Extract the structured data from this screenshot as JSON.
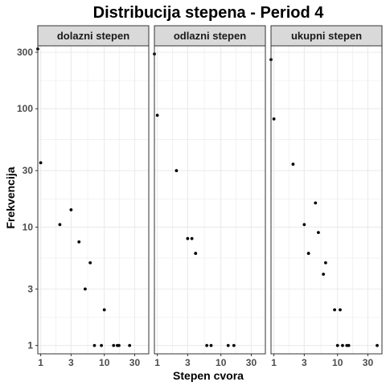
{
  "chart_data": {
    "type": "scatter",
    "title": "Distribucija stepena - Period 4",
    "xlabel": "Stepen cvora",
    "ylabel": "Frekvencija",
    "x_scale": "log",
    "y_scale": "log",
    "xlim": [
      0.9,
      50
    ],
    "ylim": [
      0.85,
      340
    ],
    "x_ticks": [
      1,
      3,
      10,
      30
    ],
    "x_tick_labels": [
      "1",
      "3",
      "10",
      "30"
    ],
    "y_ticks": [
      1,
      3,
      10,
      30,
      100,
      300
    ],
    "y_tick_labels": [
      "1",
      "3",
      "10",
      "30",
      "100",
      "300"
    ],
    "grid": true,
    "panels": [
      {
        "name": "dolazni stepen",
        "points": [
          {
            "x": 0.9,
            "y": 320
          },
          {
            "x": 1,
            "y": 35
          },
          {
            "x": 2,
            "y": 10.5
          },
          {
            "x": 3,
            "y": 14
          },
          {
            "x": 4,
            "y": 7.5
          },
          {
            "x": 5,
            "y": 3
          },
          {
            "x": 6,
            "y": 5
          },
          {
            "x": 7,
            "y": 1
          },
          {
            "x": 9,
            "y": 1
          },
          {
            "x": 10,
            "y": 2
          },
          {
            "x": 14,
            "y": 1
          },
          {
            "x": 16,
            "y": 1
          },
          {
            "x": 17,
            "y": 1
          },
          {
            "x": 25,
            "y": 1
          }
        ]
      },
      {
        "name": "odlazni stepen",
        "points": [
          {
            "x": 0.9,
            "y": 290
          },
          {
            "x": 1,
            "y": 88
          },
          {
            "x": 2,
            "y": 30
          },
          {
            "x": 3,
            "y": 8
          },
          {
            "x": 3.5,
            "y": 8
          },
          {
            "x": 4,
            "y": 6
          },
          {
            "x": 6,
            "y": 1
          },
          {
            "x": 7,
            "y": 1
          },
          {
            "x": 13,
            "y": 1
          },
          {
            "x": 16,
            "y": 1
          }
        ]
      },
      {
        "name": "ukupni stepen",
        "points": [
          {
            "x": 0.9,
            "y": 260
          },
          {
            "x": 1,
            "y": 82
          },
          {
            "x": 2,
            "y": 34
          },
          {
            "x": 3,
            "y": 10.5
          },
          {
            "x": 3.5,
            "y": 6
          },
          {
            "x": 4.5,
            "y": 16
          },
          {
            "x": 5,
            "y": 9
          },
          {
            "x": 6,
            "y": 4
          },
          {
            "x": 6.5,
            "y": 5
          },
          {
            "x": 9,
            "y": 2
          },
          {
            "x": 10,
            "y": 1
          },
          {
            "x": 11,
            "y": 2
          },
          {
            "x": 12,
            "y": 1
          },
          {
            "x": 14,
            "y": 1
          },
          {
            "x": 15,
            "y": 1
          },
          {
            "x": 42,
            "y": 1
          }
        ]
      }
    ]
  },
  "colors": {
    "point": "#000000",
    "grid": "#ebebeb",
    "panel_border": "#333333",
    "strip_fill": "#d9d9d9",
    "tick_text": "#4d4d4d"
  }
}
